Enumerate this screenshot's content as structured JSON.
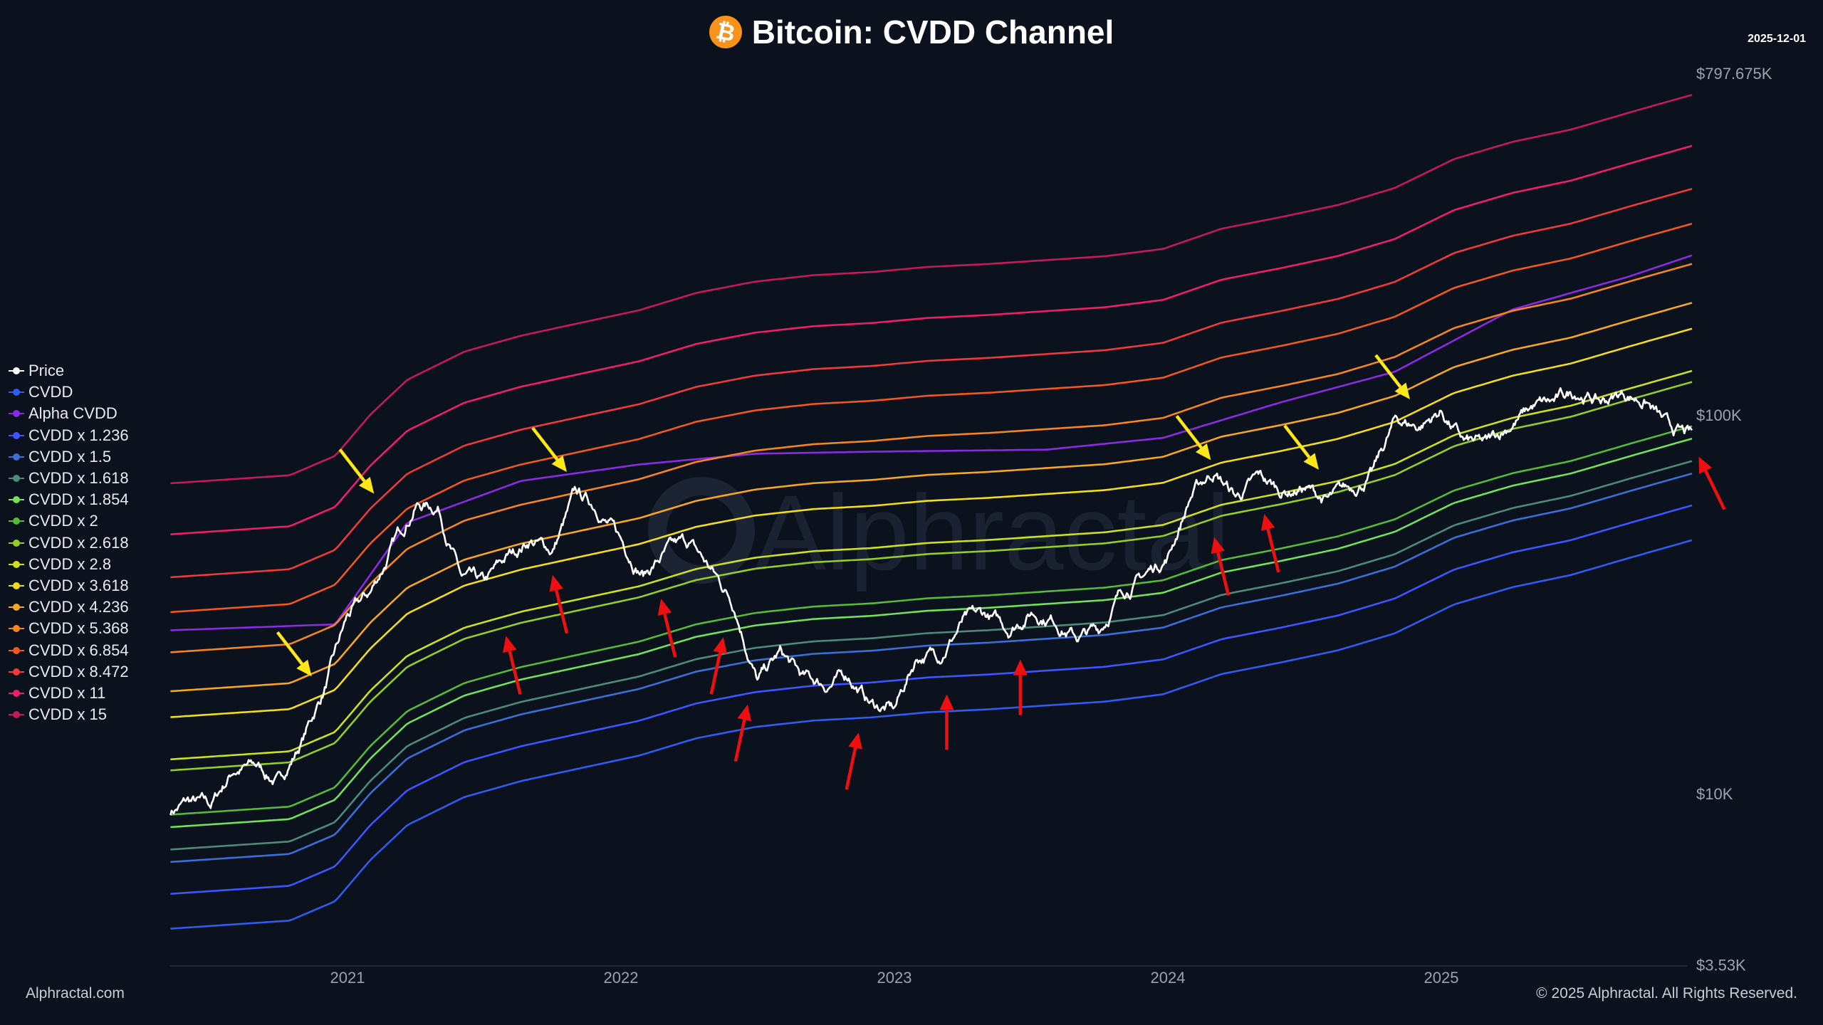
{
  "header": {
    "title": "Bitcoin: CVDD Channel",
    "icon": "bitcoin-icon",
    "date": "2025-12-01"
  },
  "footer": {
    "site": "Alphractal.com",
    "copyright": "© 2025 Alphractal. All Rights Reserved."
  },
  "watermark": "Alphractal",
  "chart_data": {
    "type": "line",
    "title": "Bitcoin: CVDD Channel",
    "y_scale": "log",
    "ylim": [
      3530,
      797675
    ],
    "y_ticks": [
      {
        "value": 797675,
        "label": "$797.675K"
      },
      {
        "value": 100000,
        "label": "$100K"
      },
      {
        "value": 10000,
        "label": "$10K"
      },
      {
        "value": 3530,
        "label": "$3.53K"
      }
    ],
    "x_ticks": [
      "2021",
      "2022",
      "2023",
      "2024",
      "2025"
    ],
    "xlim": [
      "2020-05-08",
      "2025-12-01"
    ],
    "grid": false,
    "legend_placement": "left",
    "legend": [
      {
        "name": "Price",
        "color": "#ffffff"
      },
      {
        "name": "CVDD",
        "color": "#2f5bf0"
      },
      {
        "name": "Alpha CVDD",
        "color": "#8a2be2"
      },
      {
        "name": "CVDD x 1.236",
        "color": "#3d55ff",
        "mult": 1.236
      },
      {
        "name": "CVDD x 1.5",
        "color": "#3a6fd8",
        "mult": 1.5
      },
      {
        "name": "CVDD x 1.618",
        "color": "#4f8a78",
        "mult": 1.618
      },
      {
        "name": "CVDD x 1.854",
        "color": "#72e05a",
        "mult": 1.854
      },
      {
        "name": "CVDD x 2",
        "color": "#58b83a",
        "mult": 2
      },
      {
        "name": "CVDD x 2.618",
        "color": "#94cc2a",
        "mult": 2.618
      },
      {
        "name": "CVDD x 2.8",
        "color": "#cbe020",
        "mult": 2.8
      },
      {
        "name": "CVDD x 3.618",
        "color": "#f2dc1e",
        "mult": 3.618
      },
      {
        "name": "CVDD x 4.236",
        "color": "#f5a623",
        "mult": 4.236
      },
      {
        "name": "CVDD x 5.368",
        "color": "#f5861f",
        "mult": 5.368
      },
      {
        "name": "CVDD x 6.854",
        "color": "#f0581e",
        "mult": 6.854
      },
      {
        "name": "CVDD x 8.472",
        "color": "#ee3a3a",
        "mult": 8.472
      },
      {
        "name": "CVDD x 11",
        "color": "#ee1f66",
        "mult": 11
      },
      {
        "name": "CVDD x 15",
        "color": "#c41a5a",
        "mult": 15
      }
    ],
    "cvdd": {
      "dates": [
        "2020-05-08",
        "2020-10-15",
        "2020-12-15",
        "2021-02-01",
        "2021-03-20",
        "2021-06-05",
        "2021-08-20",
        "2021-11-10",
        "2022-01-25",
        "2022-04-10",
        "2022-06-28",
        "2022-09-15",
        "2022-12-01",
        "2023-02-15",
        "2023-05-05",
        "2023-07-22",
        "2023-10-08",
        "2023-12-25",
        "2024-03-12",
        "2024-05-30",
        "2024-08-15",
        "2024-10-30",
        "2025-01-18",
        "2025-04-05",
        "2025-06-22",
        "2025-09-08",
        "2025-12-01"
      ],
      "values": [
        4400,
        4620,
        5200,
        6680,
        8260,
        9800,
        10800,
        11700,
        12600,
        14000,
        15000,
        15600,
        15900,
        16400,
        16700,
        17100,
        17500,
        18300,
        20700,
        22200,
        23900,
        26500,
        31600,
        35100,
        37800,
        41900,
        46700
      ]
    },
    "alpha_cvdd": {
      "dates": [
        "2020-05-08",
        "2020-12-15",
        "2021-03-20",
        "2021-08-20",
        "2022-01-25",
        "2022-06-28",
        "2022-12-01",
        "2023-07-22",
        "2023-12-25",
        "2024-05-30",
        "2024-10-30",
        "2025-04-05",
        "2025-09-08",
        "2025-12-01"
      ],
      "values": [
        27000,
        28000,
        52000,
        67000,
        74000,
        79000,
        80000,
        81000,
        87000,
        108000,
        130000,
        190000,
        232000,
        264000
      ]
    },
    "price": {
      "dates": [
        "2020-05-08",
        "2020-06-01",
        "2020-07-01",
        "2020-08-01",
        "2020-09-01",
        "2020-10-01",
        "2020-11-01",
        "2020-12-01",
        "2021-01-01",
        "2021-02-01",
        "2021-03-01",
        "2021-04-01",
        "2021-05-01",
        "2021-06-01",
        "2021-07-01",
        "2021-08-01",
        "2021-09-01",
        "2021-10-01",
        "2021-11-01",
        "2021-12-01",
        "2022-01-01",
        "2022-02-01",
        "2022-03-01",
        "2022-04-01",
        "2022-05-01",
        "2022-06-01",
        "2022-07-01",
        "2022-08-01",
        "2022-09-01",
        "2022-10-01",
        "2022-11-01",
        "2022-12-01",
        "2023-01-01",
        "2023-02-01",
        "2023-03-01",
        "2023-04-01",
        "2023-05-01",
        "2023-06-01",
        "2023-07-01",
        "2023-08-01",
        "2023-09-01",
        "2023-10-01",
        "2023-11-01",
        "2023-12-01",
        "2024-01-01",
        "2024-02-01",
        "2024-03-01",
        "2024-04-01",
        "2024-05-01",
        "2024-06-01",
        "2024-07-01",
        "2024-08-01",
        "2024-09-01",
        "2024-10-01",
        "2024-11-01",
        "2024-12-01",
        "2025-01-01",
        "2025-02-01",
        "2025-03-01",
        "2025-04-01",
        "2025-05-01",
        "2025-06-01",
        "2025-07-01",
        "2025-08-01",
        "2025-09-01",
        "2025-10-01",
        "2025-11-01",
        "2025-12-01"
      ],
      "values": [
        9000,
        9500,
        9200,
        11600,
        11800,
        10700,
        13800,
        19000,
        29000,
        33500,
        45000,
        58500,
        57500,
        37000,
        35000,
        41500,
        47000,
        43800,
        61000,
        57000,
        46300,
        38500,
        43200,
        45500,
        38500,
        31700,
        19900,
        23300,
        20000,
        19400,
        20500,
        17200,
        16600,
        23100,
        23500,
        28500,
        29200,
        27200,
        30500,
        29200,
        26000,
        27000,
        34500,
        37700,
        42500,
        61200,
        71300,
        60600,
        67500,
        62700,
        64600,
        59000,
        63300,
        70200,
        96400,
        93500,
        102400,
        84300,
        82500,
        94200,
        104600,
        107100,
        115700,
        108200,
        114000,
        109500,
        91000,
        87000
      ]
    },
    "annotations": [
      {
        "color": "#ffe81a",
        "direction": "down-right",
        "tip_date": "2021-02-06",
        "tip_price": 62000
      },
      {
        "color": "#ffe81a",
        "direction": "down-right",
        "tip_date": "2020-11-14",
        "tip_price": 20400
      },
      {
        "color": "#ffe81a",
        "direction": "down-right",
        "tip_date": "2021-10-20",
        "tip_price": 70700
      },
      {
        "color": "#ffe81a",
        "direction": "down-right",
        "tip_date": "2024-02-28",
        "tip_price": 76000
      },
      {
        "color": "#ffe81a",
        "direction": "down-right",
        "tip_date": "2024-07-20",
        "tip_price": 71700
      },
      {
        "color": "#ffe81a",
        "direction": "down-right",
        "tip_date": "2024-11-20",
        "tip_price": 110000
      },
      {
        "color": "#ee1010",
        "direction": "up-from-lower-right",
        "tip_date": "2021-07-30",
        "tip_price": 26100
      },
      {
        "color": "#ee1010",
        "direction": "up-from-lower-right",
        "tip_date": "2021-10-01",
        "tip_price": 37800
      },
      {
        "color": "#ee1010",
        "direction": "up-from-lower-right",
        "tip_date": "2022-02-24",
        "tip_price": 32700
      },
      {
        "color": "#ee1010",
        "direction": "up-from-lower-left",
        "tip_date": "2022-05-16",
        "tip_price": 25900
      },
      {
        "color": "#ee1010",
        "direction": "up-from-lower-left",
        "tip_date": "2022-06-18",
        "tip_price": 17200
      },
      {
        "color": "#ee1010",
        "direction": "up-from-lower-left",
        "tip_date": "2022-11-14",
        "tip_price": 14500
      },
      {
        "color": "#ee1010",
        "direction": "up",
        "tip_date": "2023-03-10",
        "tip_price": 18300
      },
      {
        "color": "#ee1010",
        "direction": "up",
        "tip_date": "2023-06-17",
        "tip_price": 22600
      },
      {
        "color": "#ee1010",
        "direction": "up-from-lower-right",
        "tip_date": "2024-03-02",
        "tip_price": 47600
      },
      {
        "color": "#ee1010",
        "direction": "up-from-lower-right",
        "tip_date": "2024-05-08",
        "tip_price": 54800
      },
      {
        "color": "#ee1010",
        "direction": "up-from-lower-right",
        "tip_date": "2025-12-10",
        "tip_price": 77600
      }
    ]
  }
}
